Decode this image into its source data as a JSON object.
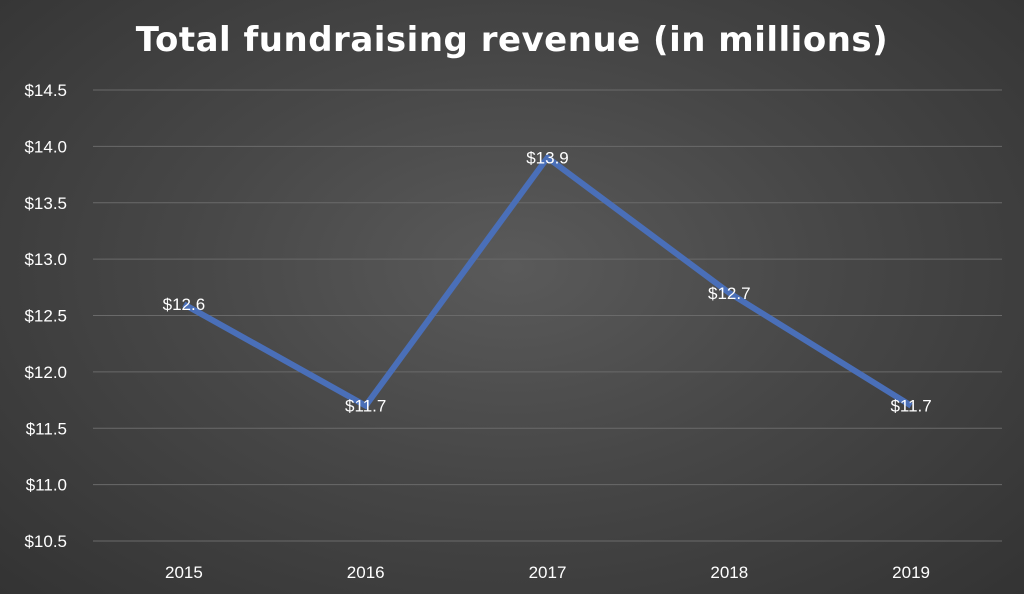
{
  "chart_data": {
    "type": "line",
    "title": "Total fundraising revenue (in millions)",
    "xlabel": "",
    "ylabel": "",
    "categories": [
      "2015",
      "2016",
      "2017",
      "2018",
      "2019"
    ],
    "series": [
      {
        "values": [
          12.6,
          11.7,
          13.9,
          12.7,
          11.7
        ],
        "data_labels": [
          "$12.6",
          "$11.7",
          "$13.9",
          "$12.7",
          "$11.7"
        ]
      }
    ],
    "ylim": [
      10.5,
      14.5
    ],
    "y_ticks": [
      10.5,
      11.0,
      11.5,
      12.0,
      12.5,
      13.0,
      13.5,
      14.0,
      14.5
    ],
    "y_tick_labels": [
      "$10.5",
      "$11.0",
      "$11.5",
      "$12.0",
      "$12.5",
      "$13.0",
      "$13.5",
      "$14.0",
      "$14.5"
    ],
    "grid": true,
    "legend": "none",
    "colors": {
      "line": "#4a6fb8",
      "text": "#ffffff",
      "grid": "#6a6a6a"
    }
  }
}
